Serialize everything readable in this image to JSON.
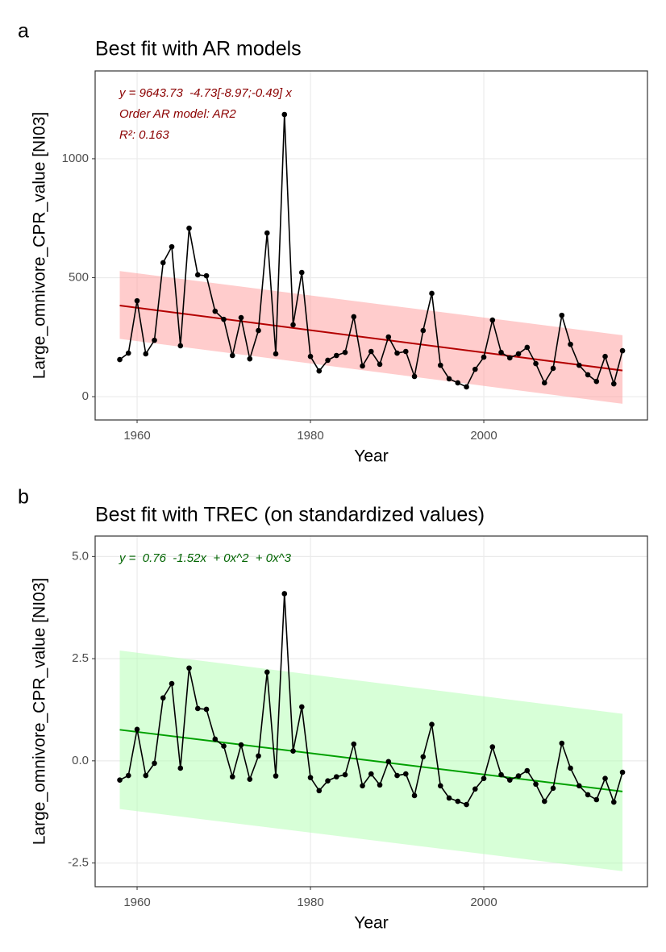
{
  "chart_data": [
    {
      "type": "line",
      "panel_label": "a",
      "title": "Best fit with AR models",
      "x_label": "Year",
      "y_label": "Large_omnivore_CPR_value [NI03]",
      "x": [
        1958,
        1959,
        1960,
        1961,
        1962,
        1963,
        1964,
        1965,
        1966,
        1967,
        1968,
        1969,
        1970,
        1971,
        1972,
        1973,
        1974,
        1975,
        1976,
        1977,
        1978,
        1979,
        1980,
        1981,
        1982,
        1983,
        1984,
        1985,
        1986,
        1987,
        1988,
        1989,
        1990,
        1991,
        1992,
        1993,
        1994,
        1995,
        1996,
        1997,
        1998,
        1999,
        2000,
        2001,
        2002,
        2003,
        2004,
        2005,
        2006,
        2007,
        2008,
        2009,
        2010,
        2011,
        2012,
        2013,
        2014,
        2015,
        2016
      ],
      "values": [
        156,
        183,
        403,
        180,
        237,
        563,
        630,
        214,
        708,
        512,
        508,
        359,
        325,
        173,
        332,
        159,
        278,
        688,
        180,
        1186,
        302,
        522,
        169,
        108,
        153,
        173,
        186,
        336,
        129,
        190,
        136,
        251,
        183,
        190,
        85,
        278,
        434,
        132,
        75,
        58,
        41,
        115,
        166,
        322,
        186,
        163,
        180,
        207,
        139,
        58,
        119,
        342,
        220,
        132,
        92,
        64,
        169,
        54,
        193
      ],
      "color": "#000000",
      "fit": {
        "x": [
          1958,
          2016
        ],
        "values": [
          383,
          110
        ],
        "lower": [
          243,
          -30
        ],
        "upper": [
          528,
          258
        ],
        "color": "#b30000",
        "band_color": "#ff9a9a"
      },
      "annotations": [
        "y = 9643.73  -4.73[-8.97;-0.49] x",
        "Order AR model: AR2",
        "R²: 0.163"
      ],
      "annotation_color": "#8b0000",
      "xlim": [
        1955.16,
        2018.88
      ],
      "ylim": [
        -98,
        1369
      ],
      "xticks": [
        1960,
        1980,
        2000
      ],
      "yticks": [
        0,
        500,
        1000
      ],
      "grid": true
    },
    {
      "type": "line",
      "panel_label": "b",
      "title": "Best fit with TREC (on standardized values)",
      "x_label": "Year",
      "y_label": "Large_omnivore_CPR_value [NI03]",
      "x": [
        1958,
        1959,
        1960,
        1961,
        1962,
        1963,
        1964,
        1965,
        1966,
        1967,
        1968,
        1969,
        1970,
        1971,
        1972,
        1973,
        1974,
        1975,
        1976,
        1977,
        1978,
        1979,
        1980,
        1981,
        1982,
        1983,
        1984,
        1985,
        1986,
        1987,
        1988,
        1989,
        1990,
        1991,
        1992,
        1993,
        1994,
        1995,
        1996,
        1997,
        1998,
        1999,
        2000,
        2001,
        2002,
        2003,
        2004,
        2005,
        2006,
        2007,
        2008,
        2009,
        2010,
        2011,
        2012,
        2013,
        2014,
        2015,
        2016
      ],
      "values": [
        -0.47,
        -0.36,
        0.77,
        -0.36,
        -0.06,
        1.54,
        1.89,
        -0.18,
        2.27,
        1.28,
        1.26,
        0.53,
        0.36,
        -0.39,
        0.39,
        -0.45,
        0.12,
        2.17,
        -0.37,
        4.09,
        0.24,
        1.32,
        -0.41,
        -0.73,
        -0.49,
        -0.39,
        -0.34,
        0.41,
        -0.61,
        -0.32,
        -0.59,
        -0.02,
        -0.36,
        -0.32,
        -0.85,
        0.1,
        0.89,
        -0.61,
        -0.91,
        -0.99,
        -1.07,
        -0.69,
        -0.43,
        0.34,
        -0.34,
        -0.47,
        -0.37,
        -0.24,
        -0.57,
        -0.99,
        -0.67,
        0.43,
        -0.18,
        -0.61,
        -0.83,
        -0.95,
        -0.43,
        -1.01,
        -0.28
      ],
      "color": "#000000",
      "fit": {
        "x": [
          1958,
          2016
        ],
        "values": [
          0.76,
          -0.75
        ],
        "lower": [
          -1.18,
          -2.7
        ],
        "upper": [
          2.7,
          1.15
        ],
        "color": "#00a000",
        "band_color": "#b0ffb0"
      },
      "annotations": [
        "y =  0.76  -1.52x  + 0x^2  + 0x^3"
      ],
      "annotation_color": "#006400",
      "xlim": [
        1955.16,
        2018.88
      ],
      "ylim": [
        -3.08,
        5.5
      ],
      "xticks": [
        1960,
        1980,
        2000
      ],
      "yticks": [
        {
          "value": -2.5,
          "label": "-2.5"
        },
        {
          "value": 0,
          "label": "0.0"
        },
        {
          "value": 2.5,
          "label": "2.5"
        },
        {
          "value": 5,
          "label": "5.0"
        }
      ],
      "grid": true
    }
  ]
}
